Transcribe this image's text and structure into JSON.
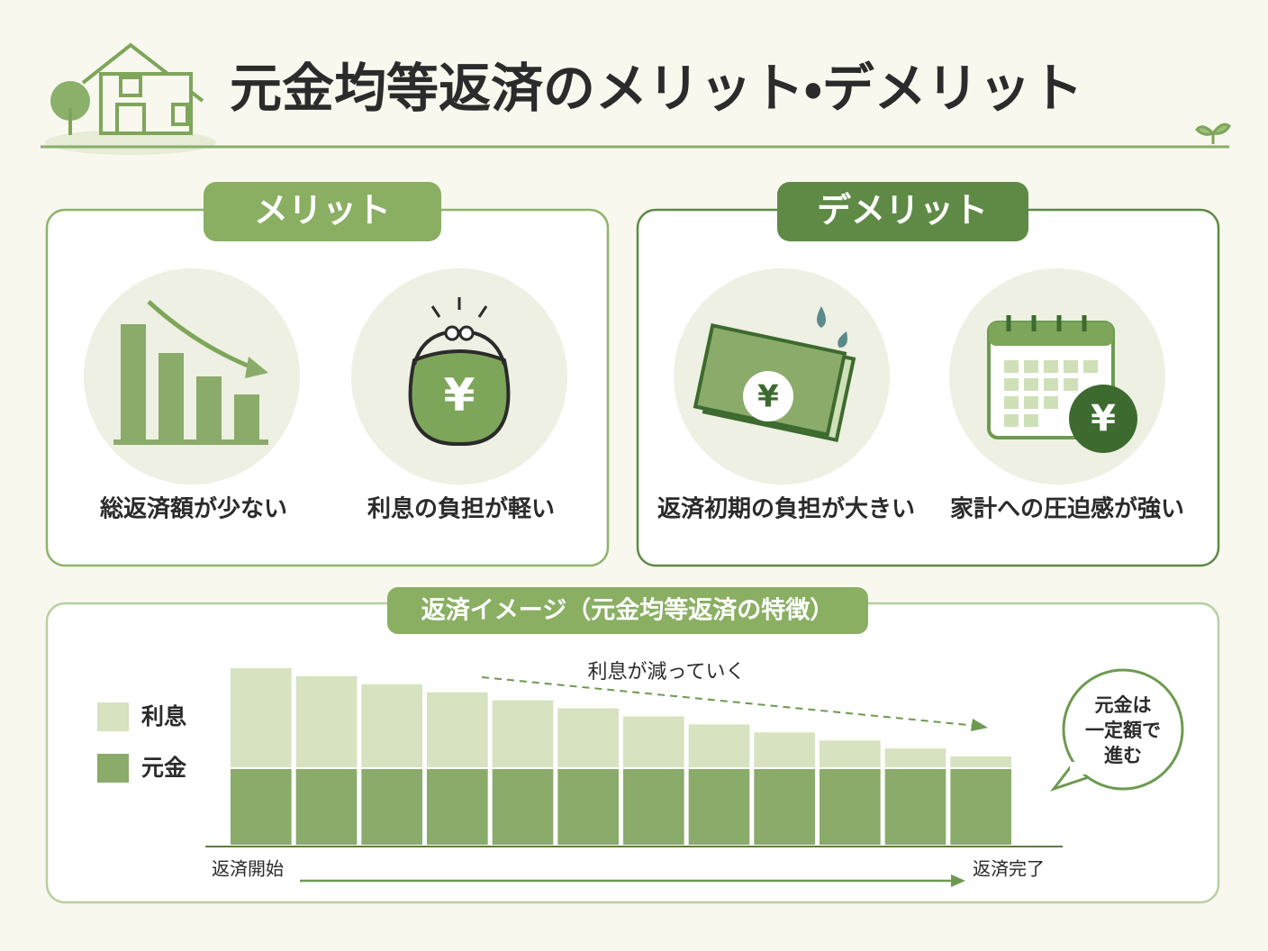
{
  "header": {
    "title": "元金均等返済のメリット・デメリット"
  },
  "merit": {
    "label": "メリット",
    "items": [
      "総返済額が少ない",
      "利息の負担が軽い"
    ]
  },
  "demerit": {
    "label": "デメリット",
    "items": [
      "返済初期の負担が大きい",
      "家計への圧迫感が強い"
    ]
  },
  "image": {
    "title": "返済イメージ（元金均等返済の特徴）",
    "legend": [
      "利息",
      "元金"
    ],
    "annotation": "利息が減っていく",
    "bubble": [
      "元金は",
      "一定額で",
      "進む"
    ],
    "start": "返済開始",
    "end": "返済完了"
  }
}
